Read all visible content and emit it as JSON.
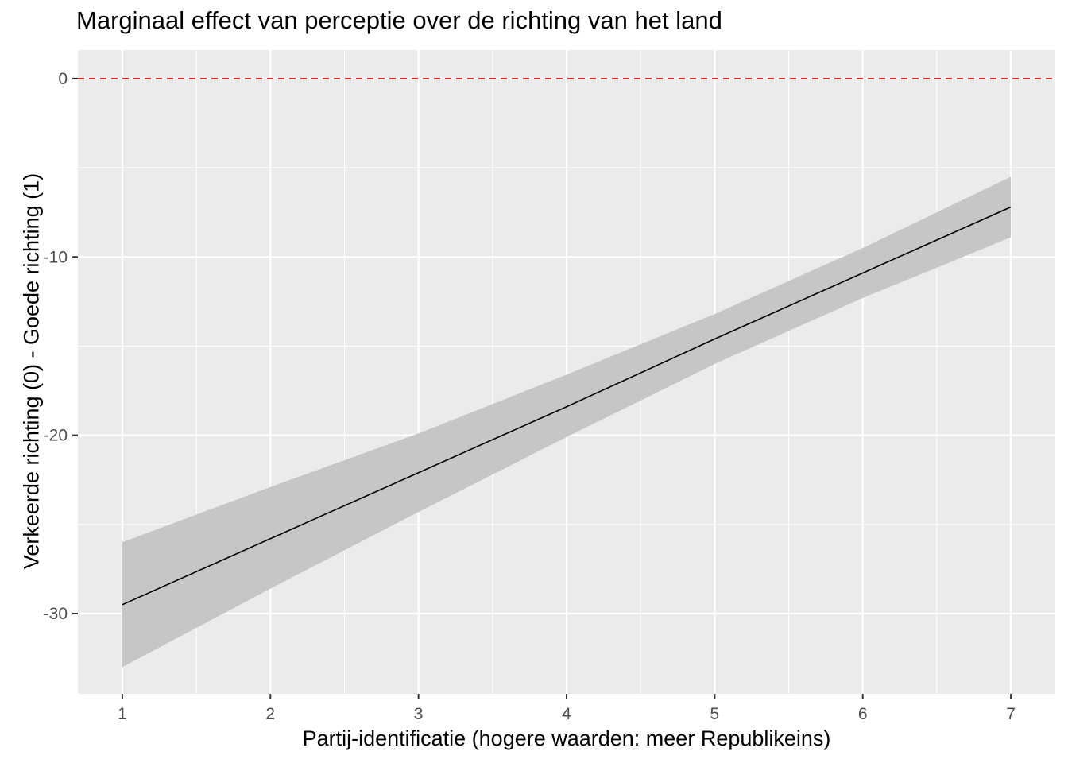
{
  "chart_data": {
    "type": "line",
    "title": "Marginaal effect van perceptie over de richting van het land",
    "xlabel": "Partij-identificatie (hogere waarden: meer Republikeins)",
    "ylabel": "Verkeerde richting (0) - Goede richting (1)",
    "x_ticks": [
      "1",
      "2",
      "3",
      "4",
      "5",
      "6",
      "7"
    ],
    "y_ticks": [
      "0",
      "-10",
      "-20",
      "-30"
    ],
    "xlim": [
      0.7,
      7.3
    ],
    "ylim": [
      -34.5,
      1.6
    ],
    "grid": true,
    "reference_line": {
      "y": 0,
      "style": "dashed",
      "color": "#e41a1c"
    },
    "series": [
      {
        "x": [
          1,
          2,
          3,
          4,
          5,
          6,
          7
        ],
        "y": [
          -29.5,
          -25.8,
          -22.1,
          -18.4,
          -14.6,
          -10.9,
          -7.2
        ],
        "ci_lower": [
          -33.0,
          -28.6,
          -24.3,
          -20.1,
          -16.0,
          -12.3,
          -8.9
        ],
        "ci_upper": [
          -26.0,
          -22.9,
          -19.9,
          -16.6,
          -13.2,
          -9.5,
          -5.5
        ]
      }
    ],
    "colors": {
      "panel": "#ebebeb",
      "grid": "#ffffff",
      "line": "#000000",
      "ribbon": "#c6c6c6",
      "axis_text": "#4d4d4d"
    }
  }
}
